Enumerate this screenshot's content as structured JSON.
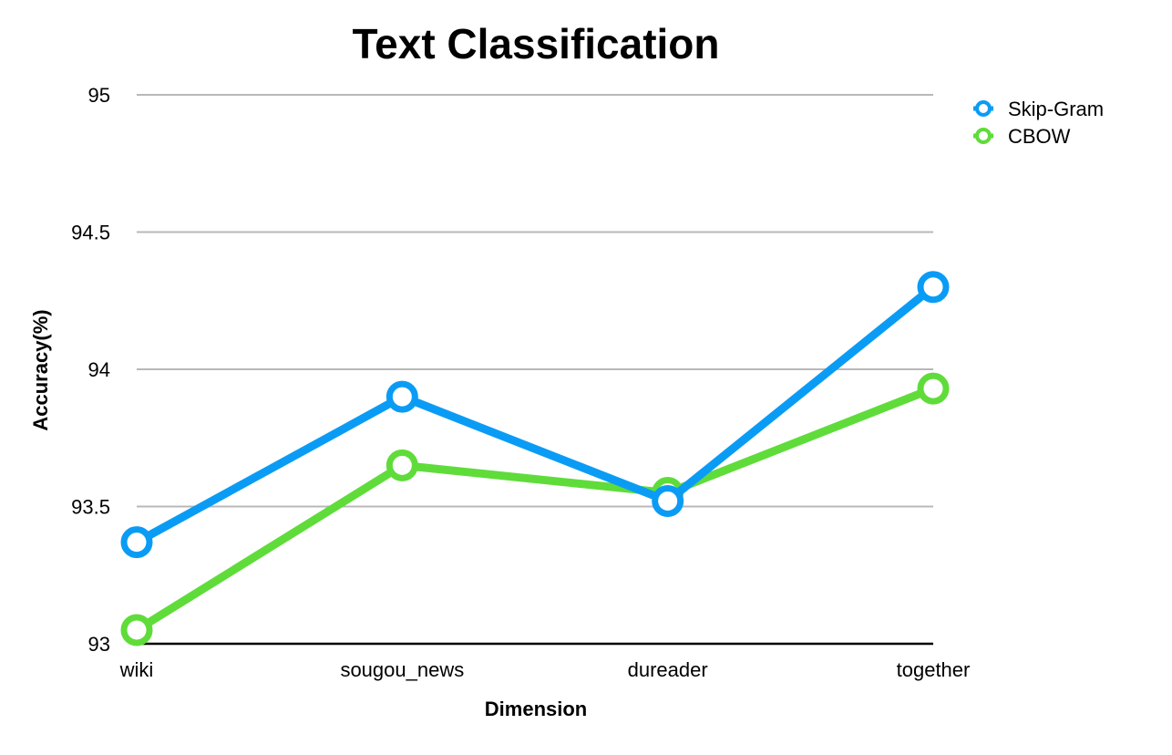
{
  "chart_data": {
    "type": "line",
    "title": "Text Classification",
    "xlabel": "Dimension",
    "ylabel": "Accuracy(%)",
    "categories": [
      "wiki",
      "sougou_news",
      "dureader",
      "together"
    ],
    "ylim": [
      93,
      95
    ],
    "yticks": [
      "93",
      "93.5",
      "94",
      "94.5",
      "95"
    ],
    "grid": true,
    "legend_position": "top-right",
    "series": [
      {
        "name": "Skip-Gram",
        "color": "#0a9cf5",
        "values": [
          93.37,
          93.9,
          93.52,
          94.3
        ]
      },
      {
        "name": "CBOW",
        "color": "#5fdc3a",
        "values": [
          93.05,
          93.65,
          93.55,
          93.93
        ]
      }
    ]
  }
}
